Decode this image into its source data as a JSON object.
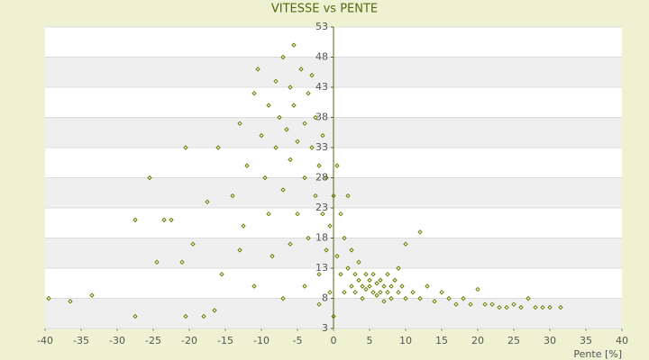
{
  "chart_data": {
    "type": "scatter",
    "title": "VITESSE vs PENTE",
    "x_label": "Pente [%]",
    "x": [
      -39.5,
      -36.5,
      -33.5,
      -27.5,
      -27.5,
      -25.5,
      -24.5,
      -23.5,
      -22.5,
      -21,
      -20.5,
      -20.5,
      -19.5,
      -18,
      -17.5,
      -16,
      -15.5,
      -16.5,
      -14,
      -13,
      -12.5,
      -12,
      -11,
      -10.5,
      -10,
      -9.5,
      -9,
      -9,
      -8.5,
      -8,
      -8,
      -7.5,
      -7,
      -7,
      -6.5,
      -6,
      -6,
      -5.5,
      -5.5,
      -5,
      -5,
      -4.5,
      -4,
      -4,
      -3.5,
      -3.5,
      -3,
      -3,
      -2.5,
      -2.5,
      -2,
      -2,
      -1.5,
      -1.5,
      -1,
      -1,
      -0.5,
      -0.5,
      0,
      0,
      -11,
      -7,
      -4,
      -2,
      -13,
      -6,
      0.5,
      0.5,
      1,
      1,
      1.5,
      1.5,
      2,
      2,
      2.5,
      2.5,
      3,
      3,
      3.5,
      3.5,
      4,
      4,
      4.5,
      4.5,
      5,
      5,
      5.5,
      5.5,
      6,
      6,
      6.5,
      6.5,
      7,
      7,
      7.5,
      7.5,
      8,
      8,
      8.5,
      9,
      9,
      9.5,
      10,
      10,
      11,
      12,
      12,
      13,
      14,
      15,
      16,
      17,
      18,
      19,
      20,
      21,
      22,
      23,
      24,
      25,
      26,
      27,
      28,
      29,
      30,
      31.5
    ],
    "series": [
      {
        "color": "#6b7a00",
        "values": [
          8,
          7.5,
          8.5,
          5,
          21,
          28,
          14,
          21,
          21,
          14,
          33,
          5,
          17,
          5,
          24,
          33,
          12,
          6,
          25,
          37,
          20,
          30,
          42,
          46,
          35,
          28,
          22,
          40,
          15,
          33,
          44,
          38,
          26,
          48,
          36,
          43,
          31,
          40,
          50,
          34,
          22,
          46,
          37,
          28,
          42,
          18,
          33,
          45,
          25,
          38,
          30,
          12,
          35,
          22,
          28,
          16,
          20,
          9,
          25,
          5,
          10,
          8,
          10,
          7,
          16,
          17,
          30,
          15,
          22,
          12,
          18,
          9,
          25,
          13,
          10,
          16,
          12,
          9,
          11,
          14,
          10,
          8,
          12,
          9.5,
          11,
          10,
          9,
          12,
          10.5,
          8.5,
          11,
          9,
          10,
          7.5,
          12,
          9,
          10,
          8,
          11,
          9,
          13,
          10,
          8,
          17,
          9,
          19,
          8,
          10,
          7.5,
          9,
          8,
          7,
          8,
          7,
          9.5,
          7,
          7,
          6.5,
          6.5,
          7,
          6.5,
          8,
          6.5,
          6.5,
          6.5,
          6.5
        ]
      }
    ],
    "xlim": [
      -40,
      40
    ],
    "ylim": [
      3,
      53
    ],
    "xticks": [
      -40,
      -35,
      -30,
      -25,
      -20,
      -15,
      -10,
      -5,
      0,
      5,
      10,
      15,
      20,
      25,
      30,
      35,
      40
    ],
    "yticks": [
      3,
      8,
      13,
      18,
      23,
      28,
      33,
      38,
      43,
      48,
      53
    ],
    "grid": true
  }
}
